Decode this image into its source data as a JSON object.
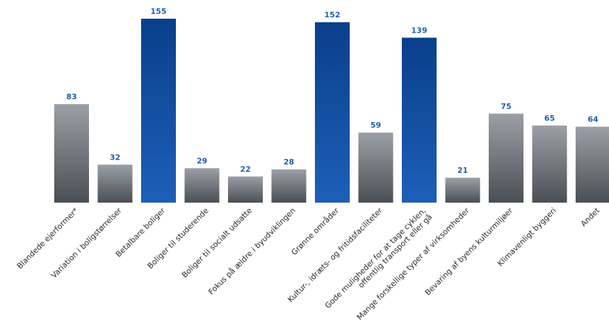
{
  "chart_data": {
    "type": "bar",
    "title": "",
    "xlabel": "",
    "ylabel": "",
    "grid": false,
    "ylim": [
      0,
      160
    ],
    "categories": [
      "Blandede ejerformer*",
      "Variation i boligstørrelser",
      "Betalbare boliger",
      "Boliger til studerende",
      "Boliger til socialt udsatte",
      "Fokus på ældre i byudviklingen",
      "Grønne områder",
      "Kultur-, idræts- og fritidsfaciliteter",
      [
        "Gode muligheder for at tage cyklen,",
        "offentlig transport eller gå"
      ],
      "Mange forskellige typer af virksomheder",
      "Bevaring af byens kulturmiljøer",
      "Klimavenligt byggeri",
      "Andet"
    ],
    "values": [
      83,
      32,
      155,
      29,
      22,
      28,
      152,
      59,
      139,
      21,
      75,
      65,
      64
    ],
    "bar_styles": [
      "gray",
      "gray",
      "blue",
      "gray",
      "gray",
      "gray",
      "blue",
      "gray",
      "blue",
      "gray",
      "gray",
      "gray",
      "gray"
    ]
  },
  "colors": {
    "value_label": "#1f5fa8",
    "gray_top": "#9aa0a6",
    "gray_bottom": "#4a4f55",
    "blue_top": "#0a3f8a",
    "blue_bottom": "#1d5fb8"
  }
}
